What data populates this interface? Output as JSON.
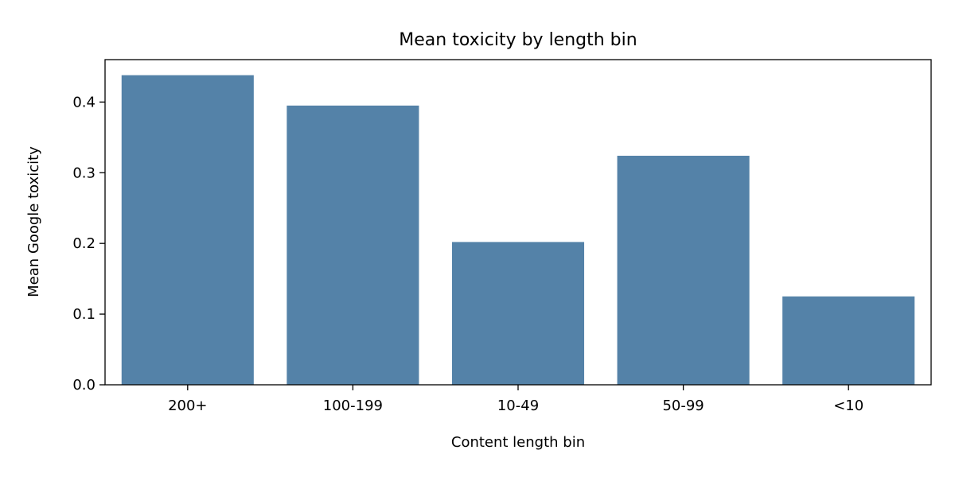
{
  "chart_data": {
    "type": "bar",
    "title": "Mean toxicity by length bin",
    "xlabel": "Content length bin",
    "ylabel": "Mean Google toxicity",
    "categories": [
      "200+",
      "100-199",
      "10-49",
      "50-99",
      "<10"
    ],
    "values": [
      0.438,
      0.395,
      0.202,
      0.324,
      0.125
    ],
    "ylim": [
      0,
      0.46
    ],
    "yticks": [
      0.0,
      0.1,
      0.2,
      0.3,
      0.4
    ],
    "ytick_labels": [
      "0.0",
      "0.1",
      "0.2",
      "0.3",
      "0.4"
    ],
    "bar_color": "#5482a8",
    "grid": false,
    "legend": "none"
  }
}
